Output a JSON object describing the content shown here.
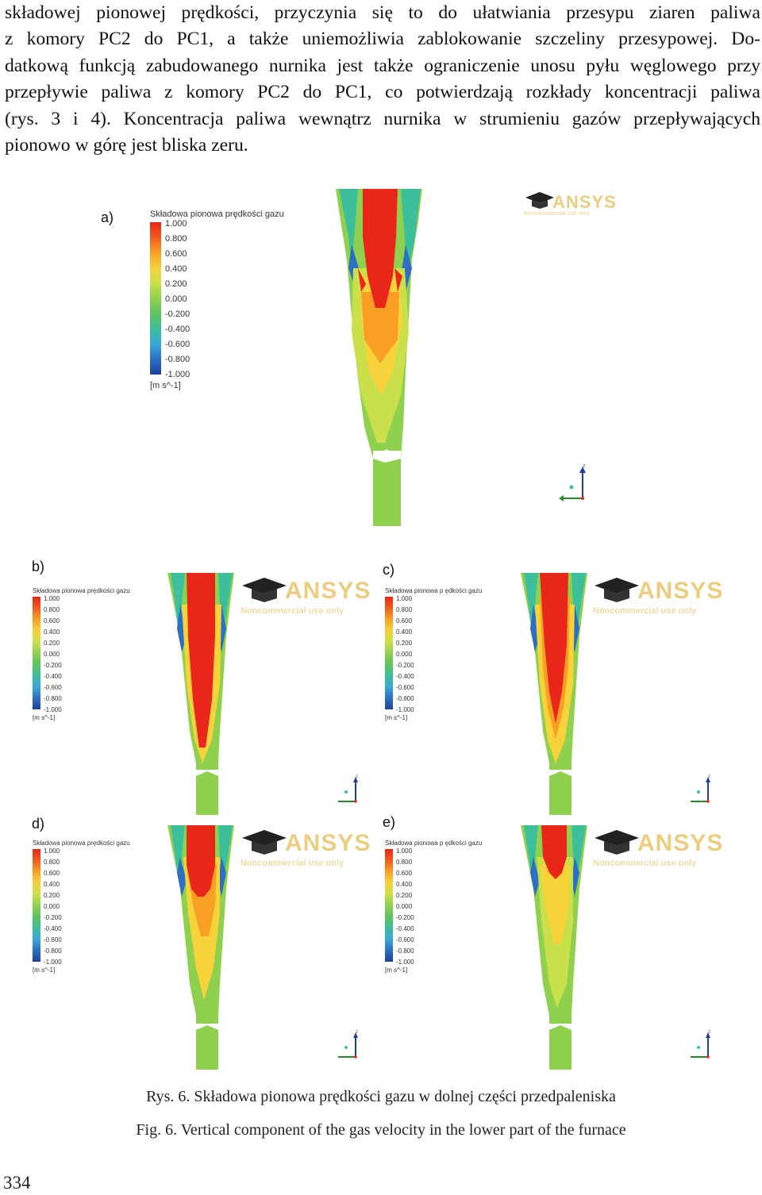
{
  "body_text": {
    "lines": [
      "składowej pionowej prędkości, przyczynia się to do ułatwiania przesypu ziaren paliwa",
      "z komory PC2 do PC1, a także uniemożliwia zablokowanie szczeliny przesypowej. Do-",
      "datkową funkcją zabudowanego nurnika jest także ograniczenie unosu pyłu węglowego przy",
      "przepływie paliwa z komory PC2 do PC1, co potwierdzają rozkłady koncentracji paliwa",
      "(rys. 3 i 4). Koncentracja paliwa wewnątrz nurnika w strumieniu gazów przepływających",
      "pionowo w górę jest bliska zeru."
    ]
  },
  "figure": {
    "panels": [
      {
        "letter": "a)",
        "legend_title": "Składowa pionowa prędkości gazu",
        "watermark": "ANSYS",
        "watermark_sub": "Noncommercial use only",
        "axis_label": "z"
      },
      {
        "letter": "b)",
        "legend_title": "Składowa pionowa prędkości gazu",
        "watermark": "ANSYS",
        "watermark_sub": "Noncommercial use only",
        "axis_label": "z"
      },
      {
        "letter": "c)",
        "legend_title": "Składowa pionowa p ędkości gazu",
        "watermark": "ANSYS",
        "watermark_sub": "Noncommercial use only",
        "axis_label": "z"
      },
      {
        "letter": "d)",
        "legend_title": "Składowa pionowa prędkości gazu",
        "watermark": "ANSYS",
        "watermark_sub": "Noncommercial use only",
        "axis_label": "z"
      },
      {
        "letter": "e)",
        "legend_title": "Składowa pionowa p ędkości gazu",
        "watermark": "ANSYS",
        "watermark_sub": "Noncommercial use only",
        "axis_label": "z"
      }
    ],
    "legend": {
      "ticks": [
        "1.000",
        "0.800",
        "0.600",
        "0.400",
        "0.200",
        "0.000",
        "-0.200",
        "-0.400",
        "-0.600",
        "-0.800",
        "-1.000"
      ],
      "unit": "[m s^-1]",
      "colors": [
        "#e8261a",
        "#f25a1c",
        "#f8a024",
        "#f7d23a",
        "#c9e04a",
        "#8fd14f",
        "#5ec45e",
        "#3cbf9a",
        "#3aa8d8",
        "#2c6fc4",
        "#1f3f9e"
      ]
    },
    "caption_pl": "Rys. 6. Składowa pionowa prędkości gazu w dolnej części przedpaleniska",
    "caption_en": "Fig. 6. Vertical component of the gas velocity in the lower part of the furnace"
  },
  "page_number": "334"
}
